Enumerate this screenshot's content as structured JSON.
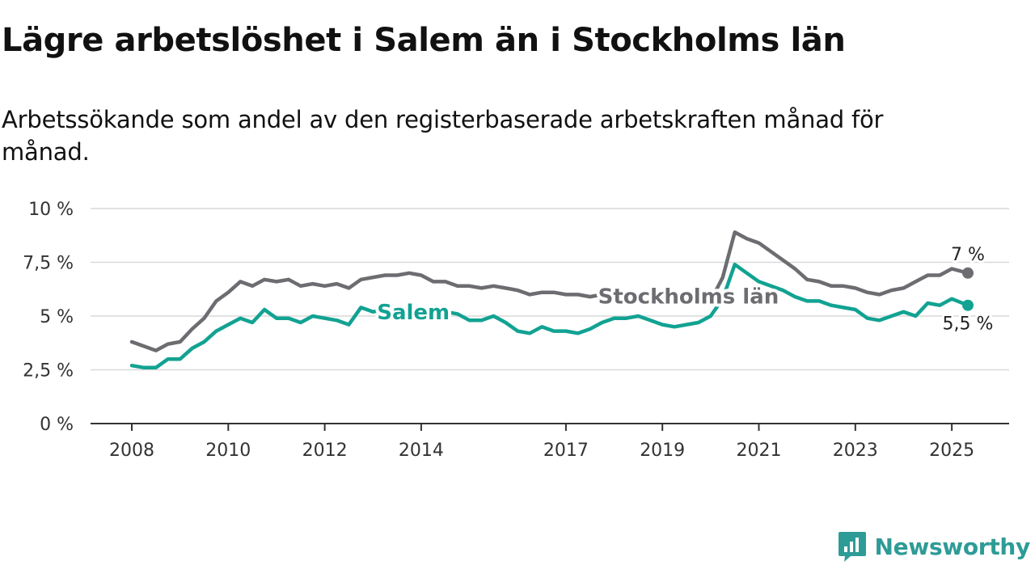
{
  "title": "Lägre arbetslöshet i Salem än i Stockholms län",
  "subtitle": "Arbetssökande som andel av den registerbaserade arbetskraften månad för månad.",
  "brand": {
    "name": "Newsworthy",
    "logo_icon": "newsworthy-logo-icon",
    "color": "#2e9b96"
  },
  "chart_data": {
    "type": "line",
    "x_start": "2008-01",
    "x_end": "2025-05",
    "y_ticks": [
      0,
      2.5,
      5,
      7.5,
      10
    ],
    "y_tick_labels": [
      "0 %",
      "2,5 %",
      "5 %",
      "7,5 %",
      "10 %"
    ],
    "x_ticks": [
      2008,
      2010,
      2012,
      2014,
      2017,
      2019,
      2021,
      2023,
      2025
    ],
    "x_tick_labels": [
      "2008",
      "2010",
      "2012",
      "2014",
      "2017",
      "2019",
      "2021",
      "2023",
      "2025"
    ],
    "ylim": [
      0,
      10
    ],
    "grid": "horizontal",
    "series": [
      {
        "name": "Stockholms län",
        "color": "#6d6c71",
        "end_label": "7 %",
        "points": [
          [
            "2008-01",
            3.8
          ],
          [
            "2008-04",
            3.6
          ],
          [
            "2008-07",
            3.4
          ],
          [
            "2008-10",
            3.7
          ],
          [
            "2009-01",
            3.8
          ],
          [
            "2009-04",
            4.4
          ],
          [
            "2009-07",
            4.9
          ],
          [
            "2009-10",
            5.7
          ],
          [
            "2010-01",
            6.1
          ],
          [
            "2010-04",
            6.6
          ],
          [
            "2010-07",
            6.4
          ],
          [
            "2010-10",
            6.7
          ],
          [
            "2011-01",
            6.6
          ],
          [
            "2011-04",
            6.7
          ],
          [
            "2011-07",
            6.4
          ],
          [
            "2011-10",
            6.5
          ],
          [
            "2012-01",
            6.4
          ],
          [
            "2012-04",
            6.5
          ],
          [
            "2012-07",
            6.3
          ],
          [
            "2012-10",
            6.7
          ],
          [
            "2013-01",
            6.8
          ],
          [
            "2013-04",
            6.9
          ],
          [
            "2013-07",
            6.9
          ],
          [
            "2013-10",
            7.0
          ],
          [
            "2014-01",
            6.9
          ],
          [
            "2014-04",
            6.6
          ],
          [
            "2014-07",
            6.6
          ],
          [
            "2014-10",
            6.4
          ],
          [
            "2015-01",
            6.4
          ],
          [
            "2015-04",
            6.3
          ],
          [
            "2015-07",
            6.4
          ],
          [
            "2015-10",
            6.3
          ],
          [
            "2016-01",
            6.2
          ],
          [
            "2016-04",
            6.0
          ],
          [
            "2016-07",
            6.1
          ],
          [
            "2016-10",
            6.1
          ],
          [
            "2017-01",
            6.0
          ],
          [
            "2017-04",
            6.0
          ],
          [
            "2017-07",
            5.9
          ],
          [
            "2017-10",
            6.0
          ],
          [
            "2018-01",
            5.9
          ],
          [
            "2018-04",
            5.8
          ],
          [
            "2018-07",
            5.9
          ],
          [
            "2018-10",
            5.7
          ],
          [
            "2019-01",
            5.7
          ],
          [
            "2019-04",
            5.6
          ],
          [
            "2019-07",
            5.8
          ],
          [
            "2019-10",
            5.6
          ],
          [
            "2020-01",
            5.7
          ],
          [
            "2020-04",
            6.8
          ],
          [
            "2020-07",
            8.9
          ],
          [
            "2020-10",
            8.6
          ],
          [
            "2021-01",
            8.4
          ],
          [
            "2021-04",
            8.0
          ],
          [
            "2021-07",
            7.6
          ],
          [
            "2021-10",
            7.2
          ],
          [
            "2022-01",
            6.7
          ],
          [
            "2022-04",
            6.6
          ],
          [
            "2022-07",
            6.4
          ],
          [
            "2022-10",
            6.4
          ],
          [
            "2023-01",
            6.3
          ],
          [
            "2023-04",
            6.1
          ],
          [
            "2023-07",
            6.0
          ],
          [
            "2023-10",
            6.2
          ],
          [
            "2024-01",
            6.3
          ],
          [
            "2024-04",
            6.6
          ],
          [
            "2024-07",
            6.9
          ],
          [
            "2024-10",
            6.9
          ],
          [
            "2025-01",
            7.2
          ],
          [
            "2025-05",
            7.0
          ]
        ]
      },
      {
        "name": "Salem",
        "color": "#12a292",
        "end_label": "5,5 %",
        "points": [
          [
            "2008-01",
            2.7
          ],
          [
            "2008-04",
            2.6
          ],
          [
            "2008-07",
            2.6
          ],
          [
            "2008-10",
            3.0
          ],
          [
            "2009-01",
            3.0
          ],
          [
            "2009-04",
            3.5
          ],
          [
            "2009-07",
            3.8
          ],
          [
            "2009-10",
            4.3
          ],
          [
            "2010-01",
            4.6
          ],
          [
            "2010-04",
            4.9
          ],
          [
            "2010-07",
            4.7
          ],
          [
            "2010-10",
            5.3
          ],
          [
            "2011-01",
            4.9
          ],
          [
            "2011-04",
            4.9
          ],
          [
            "2011-07",
            4.7
          ],
          [
            "2011-10",
            5.0
          ],
          [
            "2012-01",
            4.9
          ],
          [
            "2012-04",
            4.8
          ],
          [
            "2012-07",
            4.6
          ],
          [
            "2012-10",
            5.4
          ],
          [
            "2013-01",
            5.2
          ],
          [
            "2013-04",
            5.3
          ],
          [
            "2013-07",
            5.3
          ],
          [
            "2013-10",
            5.0
          ],
          [
            "2014-01",
            5.1
          ],
          [
            "2014-04",
            4.9
          ],
          [
            "2014-07",
            5.2
          ],
          [
            "2014-10",
            5.1
          ],
          [
            "2015-01",
            4.8
          ],
          [
            "2015-04",
            4.8
          ],
          [
            "2015-07",
            5.0
          ],
          [
            "2015-10",
            4.7
          ],
          [
            "2016-01",
            4.3
          ],
          [
            "2016-04",
            4.2
          ],
          [
            "2016-07",
            4.5
          ],
          [
            "2016-10",
            4.3
          ],
          [
            "2017-01",
            4.3
          ],
          [
            "2017-04",
            4.2
          ],
          [
            "2017-07",
            4.4
          ],
          [
            "2017-10",
            4.7
          ],
          [
            "2018-01",
            4.9
          ],
          [
            "2018-04",
            4.9
          ],
          [
            "2018-07",
            5.0
          ],
          [
            "2018-10",
            4.8
          ],
          [
            "2019-01",
            4.6
          ],
          [
            "2019-04",
            4.5
          ],
          [
            "2019-07",
            4.6
          ],
          [
            "2019-10",
            4.7
          ],
          [
            "2020-01",
            5.0
          ],
          [
            "2020-04",
            5.8
          ],
          [
            "2020-07",
            7.4
          ],
          [
            "2020-10",
            7.0
          ],
          [
            "2021-01",
            6.6
          ],
          [
            "2021-04",
            6.4
          ],
          [
            "2021-07",
            6.2
          ],
          [
            "2021-10",
            5.9
          ],
          [
            "2022-01",
            5.7
          ],
          [
            "2022-04",
            5.7
          ],
          [
            "2022-07",
            5.5
          ],
          [
            "2022-10",
            5.4
          ],
          [
            "2023-01",
            5.3
          ],
          [
            "2023-04",
            4.9
          ],
          [
            "2023-07",
            4.8
          ],
          [
            "2023-10",
            5.0
          ],
          [
            "2024-01",
            5.2
          ],
          [
            "2024-04",
            5.0
          ],
          [
            "2024-07",
            5.6
          ],
          [
            "2024-10",
            5.5
          ],
          [
            "2025-01",
            5.8
          ],
          [
            "2025-05",
            5.5
          ]
        ]
      }
    ],
    "labels": [
      {
        "series": "Stockholms län",
        "text": "Stockholms län",
        "at": "2017-09"
      },
      {
        "series": "Salem",
        "text": "Salem",
        "at": "2013-02"
      }
    ]
  }
}
